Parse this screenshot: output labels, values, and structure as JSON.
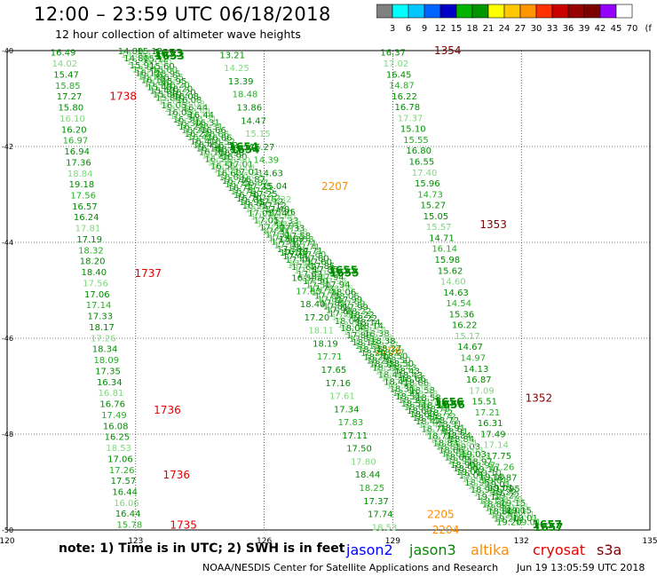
{
  "title": "12:00 – 23:59 UTC 06/18/2018",
  "subtitle": "12 hour collection of altimeter wave heights",
  "colorbar": {
    "labels": [
      "3",
      "6",
      "9",
      "12",
      "15",
      "18",
      "21",
      "24",
      "27",
      "30",
      "33",
      "36",
      "39",
      "42",
      "45",
      "70",
      "(ft)"
    ],
    "colors": [
      "#808080",
      "#00ffff",
      "#00c8ff",
      "#0064ff",
      "#0000c8",
      "#00b400",
      "#009600",
      "#ffff00",
      "#ffc800",
      "#ff9600",
      "#ff3200",
      "#c80000",
      "#960000",
      "#7d0000",
      "#9600ff",
      "#ffffff"
    ]
  },
  "axes": {
    "x_ticks": [
      "120",
      "123",
      "126",
      "129",
      "132",
      "135"
    ],
    "y_ticks": [
      "-40",
      "-42",
      "-44",
      "-46",
      "-48",
      "-50"
    ]
  },
  "colors": {
    "green_dark": "#008c00",
    "green_mid": "#22b022",
    "green_light": "#7ed87e",
    "jason2": "#0000ff",
    "jason3": "#008c00",
    "altika": "#ff8c00",
    "cryosat": "#e60000",
    "s3a": "#800000"
  },
  "tracks": {
    "track_a": {
      "values": [
        "16.49",
        "14.02",
        "15.47",
        "15.85",
        "17.27",
        "15.80",
        "16.10",
        "16.20",
        "16.97",
        "16.94",
        "17.36",
        "18.84",
        "19.18",
        "17.56",
        "16.57",
        "16.24",
        "17.81",
        "17.19",
        "18.32",
        "18.20",
        "18.40",
        "17.56",
        "17.06",
        "17.14",
        "17.33",
        "18.17",
        "17.26",
        "18.34",
        "18.09",
        "17.35",
        "16.34",
        "16.81",
        "16.76",
        "17.49",
        "16.08",
        "16.25",
        "18.53",
        "17.06",
        "17.26",
        "17.57",
        "16.44",
        "16.06",
        "16.44",
        "15.78"
      ],
      "time_labels": [
        {
          "label": "1738",
          "color": "cryosat",
          "lat": -40.95
        },
        {
          "label": "1737",
          "color": "cryosat",
          "lat": -44.65
        },
        {
          "label": "1736",
          "color": "cryosat",
          "lat": -47.5
        },
        {
          "label": "1736",
          "color": "cryosat",
          "lat": -48.85
        },
        {
          "label": "1735",
          "color": "cryosat",
          "lat": -49.9
        }
      ]
    },
    "track_b": {
      "values": [
        "13.21",
        "14.25",
        "13.39",
        "18.48",
        "13.86",
        "14.47",
        "15.15",
        "15.27",
        "14.39",
        "14.63",
        "15.04",
        "15.32",
        "15.25",
        "15.91",
        "15.69",
        "16.18",
        "16.20",
        "16.59",
        "17.83",
        "18.40",
        "17.20",
        "18.11",
        "18.19",
        "17.71",
        "17.65",
        "17.16",
        "17.61",
        "17.34",
        "17.83",
        "17.11",
        "17.50",
        "17.80",
        "18.44",
        "18.25",
        "17.37",
        "17.74",
        "18.53"
      ],
      "time_labels": [
        {
          "label": "2207",
          "color": "altika",
          "lat": -42.83
        },
        {
          "label": "2206",
          "color": "altika",
          "lat": -46.27
        },
        {
          "label": "2205",
          "color": "altika",
          "lat": -49.68
        },
        {
          "label": "2204",
          "color": "altika",
          "lat": -50.0
        }
      ]
    },
    "track_c": {
      "values": [
        "16.37",
        "17.02",
        "16.45",
        "14.87",
        "16.22",
        "16.78",
        "17.37",
        "15.10",
        "15.55",
        "16.80",
        "16.55",
        "17.40",
        "15.96",
        "14.73",
        "15.27",
        "15.05",
        "15.57",
        "14.71",
        "16.14",
        "15.98",
        "15.62",
        "14.60",
        "14.63",
        "14.54",
        "15.36",
        "16.22",
        "15.17",
        "14.67",
        "14.97",
        "14.13",
        "16.87",
        "17.09",
        "15.51",
        "17.21",
        "16.31",
        "17.49",
        "17.14",
        "17.75",
        "17.26",
        "18.87",
        "17.95",
        "18.70",
        "18.00"
      ],
      "time_labels": [
        {
          "label": "1354",
          "color": "s3a",
          "lat": -40.0
        },
        {
          "label": "1353",
          "color": "s3a",
          "lat": -43.63
        },
        {
          "label": "1352",
          "color": "s3a",
          "lat": -47.25
        }
      ]
    },
    "diag_1": {
      "values": [
        "14.80",
        "15.91",
        "16.12",
        "15.40",
        "15.88",
        "16.05",
        "16.30",
        "16.22",
        "16.41",
        "16.18",
        "16.55",
        "16.60",
        "16.77",
        "16.70",
        "16.95",
        "17.05",
        "17.20",
        "17.31",
        "17.10",
        "17.44",
        "17.62",
        "17.50",
        "17.73",
        "17.81",
        "17.92",
        "18.04",
        "17.88",
        "18.15",
        "18.20",
        "18.33",
        "18.41",
        "18.30",
        "18.52",
        "18.60",
        "18.47",
        "18.71",
        "18.83",
        "18.66",
        "18.90",
        "19.01",
        "18.95",
        "19.12",
        "18.80",
        "19.20"
      ],
      "time_labels": [
        {
          "label": "1653",
          "color": "jason3",
          "lat": -40.02
        },
        {
          "label": "1654",
          "color": "jason3",
          "lat": -41.97
        },
        {
          "label": "1655",
          "color": "jason3",
          "lat": -44.55
        },
        {
          "label": "1656",
          "color": "jason3",
          "lat": -47.3
        },
        {
          "label": "1657",
          "color": "jason3",
          "lat": -49.85
        }
      ]
    },
    "diag_2_values": [
      "15.12",
      "15.60",
      "15.95",
      "16.20",
      "16.08",
      "16.44",
      "16.31",
      "16.66",
      "16.52",
      "16.90",
      "17.01",
      "16.87",
      "17.25",
      "17.12",
      "17.40",
      "17.33",
      "17.58",
      "17.71",
      "17.60",
      "17.85",
      "17.94",
      "18.06",
      "17.99",
      "18.22",
      "18.14",
      "18.38",
      "18.27",
      "18.50",
      "18.43",
      "18.66",
      "18.58",
      "18.79",
      "18.72",
      "18.91",
      "18.84",
      "19.03",
      "18.97",
      "19.10",
      "19.01",
      "19.22",
      "19.15",
      "19.01"
    ]
  },
  "note": "note:  1) Time is in UTC;  2) SWH is in feet",
  "legend": [
    {
      "label": "jason2",
      "color": "jason2"
    },
    {
      "label": "jason3",
      "color": "jason3"
    },
    {
      "label": "altika",
      "color": "altika"
    },
    {
      "label": "cryosat",
      "color": "cryosat"
    },
    {
      "label": "s3a",
      "color": "s3a"
    }
  ],
  "credit": "NOAA/NESDIS Center for Satellite Applications and Research",
  "timestamp": "Jun 19 13:05:59 UTC 2018"
}
